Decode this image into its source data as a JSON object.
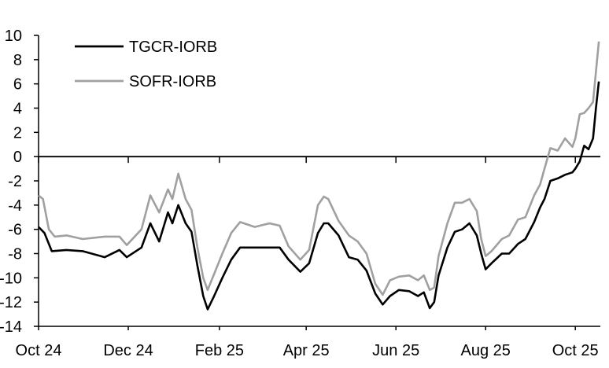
{
  "chart_data": {
    "type": "line",
    "title": "",
    "xlabel": "",
    "ylabel": "",
    "ylim": [
      -14,
      10
    ],
    "y_ticks": [
      10,
      8,
      6,
      4,
      2,
      0,
      -2,
      -4,
      -6,
      -8,
      -10,
      -12,
      -14
    ],
    "x_ticks": [
      "Oct 24",
      "Dec 24",
      "Feb 25",
      "Apr 25",
      "Jun 25",
      "Aug 25",
      "Oct 25"
    ],
    "x_tick_dates": [
      "2024-10-01",
      "2024-12-01",
      "2025-02-01",
      "2025-04-01",
      "2025-06-01",
      "2025-08-01",
      "2025-10-01"
    ],
    "xlim": [
      "2024-10-01",
      "2025-10-18"
    ],
    "grid": false,
    "legend_position": "top-left",
    "zero_line": true,
    "series": [
      {
        "name": "TGCR-IORB",
        "color": "#000000",
        "points": [
          [
            "2024-10-01",
            -5.8
          ],
          [
            "2024-10-05",
            -6.3
          ],
          [
            "2024-10-10",
            -7.8
          ],
          [
            "2024-10-20",
            -7.7
          ],
          [
            "2024-10-31",
            -7.8
          ],
          [
            "2024-11-15",
            -8.3
          ],
          [
            "2024-11-25",
            -7.7
          ],
          [
            "2024-11-30",
            -8.3
          ],
          [
            "2024-12-10",
            -7.5
          ],
          [
            "2024-12-16",
            -5.5
          ],
          [
            "2024-12-22",
            -7.0
          ],
          [
            "2024-12-28",
            -4.6
          ],
          [
            "2024-12-31",
            -5.5
          ],
          [
            "2025-01-04",
            -4.0
          ],
          [
            "2025-01-09",
            -5.5
          ],
          [
            "2025-01-13",
            -6.2
          ],
          [
            "2025-01-17",
            -9.0
          ],
          [
            "2025-01-21",
            -11.5
          ],
          [
            "2025-01-24",
            -12.6
          ],
          [
            "2025-01-28",
            -11.6
          ],
          [
            "2025-02-03",
            -10.0
          ],
          [
            "2025-02-09",
            -8.5
          ],
          [
            "2025-02-15",
            -7.5
          ],
          [
            "2025-02-25",
            -7.5
          ],
          [
            "2025-03-07",
            -7.5
          ],
          [
            "2025-03-14",
            -7.5
          ],
          [
            "2025-03-20",
            -8.5
          ],
          [
            "2025-03-28",
            -9.5
          ],
          [
            "2025-04-03",
            -8.8
          ],
          [
            "2025-04-09",
            -6.3
          ],
          [
            "2025-04-13",
            -5.5
          ],
          [
            "2025-04-16",
            -5.5
          ],
          [
            "2025-04-23",
            -6.5
          ],
          [
            "2025-04-30",
            -8.3
          ],
          [
            "2025-05-06",
            -8.5
          ],
          [
            "2025-05-12",
            -9.4
          ],
          [
            "2025-05-18",
            -11.3
          ],
          [
            "2025-05-23",
            -12.2
          ],
          [
            "2025-05-28",
            -11.5
          ],
          [
            "2025-06-03",
            -11.0
          ],
          [
            "2025-06-10",
            -11.1
          ],
          [
            "2025-06-16",
            -11.5
          ],
          [
            "2025-06-20",
            -11.2
          ],
          [
            "2025-06-24",
            -12.5
          ],
          [
            "2025-06-27",
            -12.0
          ],
          [
            "2025-06-30",
            -9.8
          ],
          [
            "2025-07-06",
            -7.5
          ],
          [
            "2025-07-11",
            -6.2
          ],
          [
            "2025-07-16",
            -6.0
          ],
          [
            "2025-07-21",
            -5.5
          ],
          [
            "2025-07-26",
            -6.5
          ],
          [
            "2025-07-29",
            -8.0
          ],
          [
            "2025-08-01",
            -9.3
          ],
          [
            "2025-08-05",
            -8.8
          ],
          [
            "2025-08-12",
            -8.0
          ],
          [
            "2025-08-17",
            -8.0
          ],
          [
            "2025-08-23",
            -7.2
          ],
          [
            "2025-08-28",
            -6.8
          ],
          [
            "2025-09-03",
            -5.4
          ],
          [
            "2025-09-07",
            -4.2
          ],
          [
            "2025-09-10",
            -3.5
          ],
          [
            "2025-09-14",
            -2.0
          ],
          [
            "2025-09-19",
            -1.8
          ],
          [
            "2025-09-24",
            -1.5
          ],
          [
            "2025-09-29",
            -1.3
          ],
          [
            "2025-10-01",
            -1.0
          ],
          [
            "2025-10-04",
            -0.4
          ],
          [
            "2025-10-07",
            0.9
          ],
          [
            "2025-10-10",
            0.6
          ],
          [
            "2025-10-13",
            1.5
          ],
          [
            "2025-10-15",
            4.0
          ],
          [
            "2025-10-17",
            6.2
          ]
        ]
      },
      {
        "name": "SOFR-IORB",
        "color": "#a0a0a0",
        "points": [
          [
            "2024-10-01",
            -3.2
          ],
          [
            "2024-10-04",
            -3.5
          ],
          [
            "2024-10-08",
            -6.0
          ],
          [
            "2024-10-12",
            -6.6
          ],
          [
            "2024-10-20",
            -6.5
          ],
          [
            "2024-10-31",
            -6.8
          ],
          [
            "2024-11-15",
            -6.6
          ],
          [
            "2024-11-25",
            -6.6
          ],
          [
            "2024-11-30",
            -7.3
          ],
          [
            "2024-12-10",
            -6.0
          ],
          [
            "2024-12-16",
            -3.2
          ],
          [
            "2024-12-22",
            -4.6
          ],
          [
            "2024-12-28",
            -2.7
          ],
          [
            "2024-12-31",
            -3.5
          ],
          [
            "2025-01-04",
            -1.4
          ],
          [
            "2025-01-09",
            -3.5
          ],
          [
            "2025-01-13",
            -4.4
          ],
          [
            "2025-01-17",
            -7.5
          ],
          [
            "2025-01-21",
            -10.0
          ],
          [
            "2025-01-24",
            -11.0
          ],
          [
            "2025-01-28",
            -9.8
          ],
          [
            "2025-02-03",
            -8.0
          ],
          [
            "2025-02-09",
            -6.3
          ],
          [
            "2025-02-15",
            -5.4
          ],
          [
            "2025-02-25",
            -5.8
          ],
          [
            "2025-03-07",
            -5.5
          ],
          [
            "2025-03-14",
            -5.7
          ],
          [
            "2025-03-20",
            -7.4
          ],
          [
            "2025-03-28",
            -8.5
          ],
          [
            "2025-04-03",
            -7.7
          ],
          [
            "2025-04-09",
            -4.0
          ],
          [
            "2025-04-13",
            -3.3
          ],
          [
            "2025-04-16",
            -3.5
          ],
          [
            "2025-04-23",
            -5.3
          ],
          [
            "2025-04-30",
            -6.5
          ],
          [
            "2025-05-06",
            -7.0
          ],
          [
            "2025-05-12",
            -8.0
          ],
          [
            "2025-05-18",
            -10.5
          ],
          [
            "2025-05-23",
            -11.4
          ],
          [
            "2025-05-28",
            -10.2
          ],
          [
            "2025-06-03",
            -9.9
          ],
          [
            "2025-06-10",
            -9.8
          ],
          [
            "2025-06-16",
            -10.2
          ],
          [
            "2025-06-20",
            -9.8
          ],
          [
            "2025-06-24",
            -11.0
          ],
          [
            "2025-06-27",
            -10.8
          ],
          [
            "2025-06-30",
            -8.2
          ],
          [
            "2025-07-06",
            -5.5
          ],
          [
            "2025-07-11",
            -3.8
          ],
          [
            "2025-07-16",
            -3.8
          ],
          [
            "2025-07-21",
            -3.5
          ],
          [
            "2025-07-26",
            -4.5
          ],
          [
            "2025-07-29",
            -6.8
          ],
          [
            "2025-08-01",
            -8.2
          ],
          [
            "2025-08-05",
            -7.8
          ],
          [
            "2025-08-12",
            -6.8
          ],
          [
            "2025-08-17",
            -6.5
          ],
          [
            "2025-08-23",
            -5.2
          ],
          [
            "2025-08-28",
            -5.0
          ],
          [
            "2025-09-03",
            -3.2
          ],
          [
            "2025-09-07",
            -2.3
          ],
          [
            "2025-09-10",
            -1.0
          ],
          [
            "2025-09-14",
            0.7
          ],
          [
            "2025-09-19",
            0.5
          ],
          [
            "2025-09-24",
            1.5
          ],
          [
            "2025-09-29",
            0.8
          ],
          [
            "2025-10-01",
            1.5
          ],
          [
            "2025-10-04",
            3.5
          ],
          [
            "2025-10-07",
            3.6
          ],
          [
            "2025-10-10",
            4.0
          ],
          [
            "2025-10-13",
            4.5
          ],
          [
            "2025-10-15",
            7.0
          ],
          [
            "2025-10-17",
            9.5
          ]
        ]
      }
    ]
  }
}
